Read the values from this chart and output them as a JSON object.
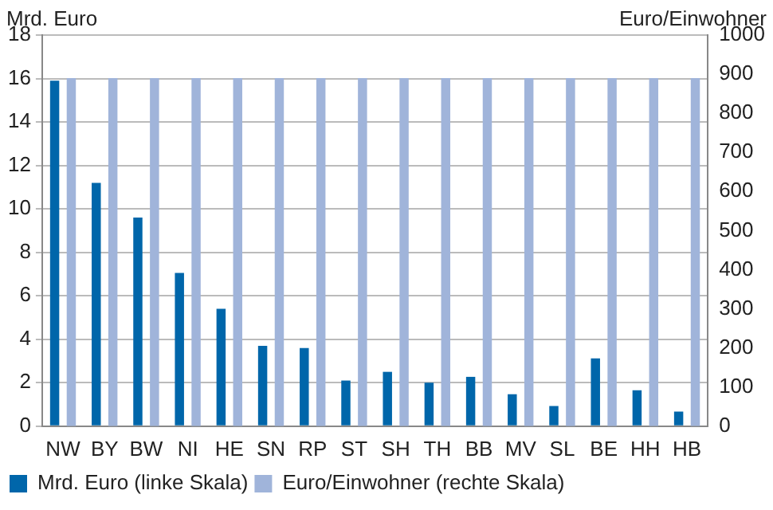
{
  "chart_data": {
    "type": "bar",
    "ylabel": "Mrd. Euro",
    "y2label": "Euro/Einwohner",
    "categories": [
      "NW",
      "BY",
      "BW",
      "NI",
      "HE",
      "SN",
      "RP",
      "ST",
      "SH",
      "TH",
      "BB",
      "MV",
      "SL",
      "BE",
      "HH",
      "HB"
    ],
    "series": [
      {
        "name": "Mrd. Euro (linke Skala)",
        "color": "#0066aa",
        "values": [
          15.9,
          11.2,
          9.6,
          7.05,
          5.4,
          3.7,
          3.6,
          2.1,
          2.5,
          2.0,
          2.27,
          1.47,
          0.93,
          3.12,
          1.65,
          0.67
        ]
      },
      {
        "name": "Euro/Einwohner (rechte Skala)",
        "color": "#a0b4da",
        "axis": "y2",
        "values": [
          890,
          890,
          890,
          890,
          890,
          890,
          890,
          890,
          890,
          890,
          890,
          890,
          890,
          890,
          890,
          890
        ]
      }
    ],
    "ylim": [
      0,
      18
    ],
    "yticks": [
      0,
      2,
      4,
      6,
      8,
      10,
      12,
      14,
      16,
      18
    ],
    "y2lim": [
      0,
      1000
    ],
    "y2ticks": [
      0,
      100,
      200,
      300,
      400,
      500,
      600,
      700,
      800,
      900,
      1000
    ],
    "grid": "y",
    "legend": "bottom left"
  }
}
